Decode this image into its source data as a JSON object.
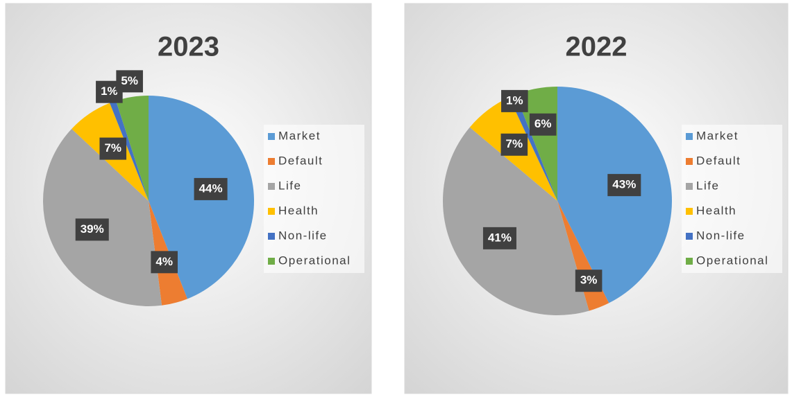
{
  "chart_data": [
    {
      "type": "pie",
      "title": "2023",
      "categories": [
        "Market",
        "Default",
        "Life",
        "Health",
        "Non-life",
        "Operational"
      ],
      "values": [
        44,
        4,
        39,
        7,
        1,
        5
      ],
      "value_labels": [
        "44%",
        "4%",
        "39%",
        "7%",
        "1%",
        "5%"
      ],
      "colors": [
        "#5b9bd5",
        "#ed7d31",
        "#a5a5a5",
        "#ffc000",
        "#4472c4",
        "#70ad47"
      ],
      "legend": "right"
    },
    {
      "type": "pie",
      "title": "2022",
      "categories": [
        "Market",
        "Default",
        "Life",
        "Health",
        "Non-life",
        "Operational"
      ],
      "values": [
        43,
        3,
        41,
        7,
        1,
        6
      ],
      "value_labels": [
        "43%",
        "3%",
        "41%",
        "7%",
        "1%",
        "6%"
      ],
      "colors": [
        "#5b9bd5",
        "#ed7d31",
        "#a5a5a5",
        "#ffc000",
        "#4472c4",
        "#70ad47"
      ],
      "legend": "right"
    }
  ]
}
